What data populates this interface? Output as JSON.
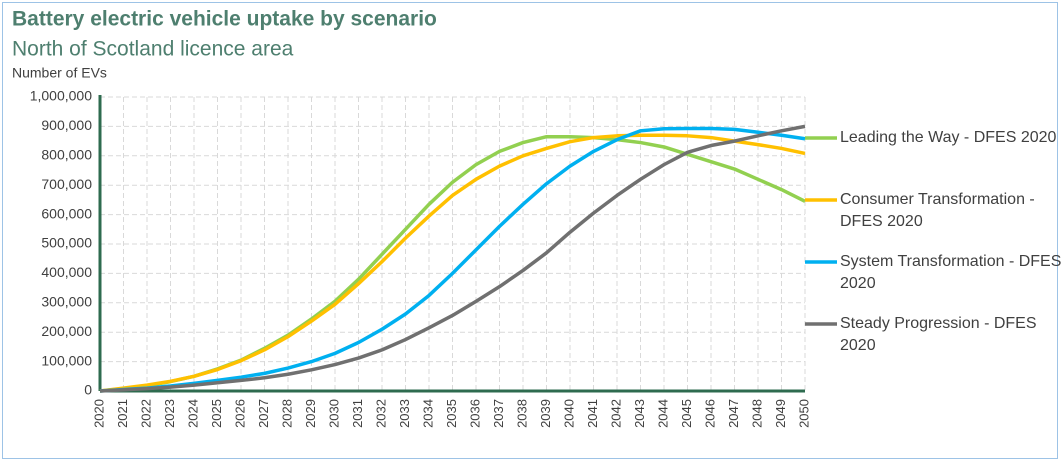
{
  "chart_data": {
    "type": "line",
    "title": "Battery electric vehicle uptake by scenario",
    "subtitle": "North of Scotland licence area",
    "y_label": "Number of EVs",
    "categories": [
      "2020",
      "2021",
      "2022",
      "2023",
      "2024",
      "2025",
      "2026",
      "2027",
      "2028",
      "2029",
      "2030",
      "2031",
      "2032",
      "2033",
      "2034",
      "2035",
      "2036",
      "2037",
      "2038",
      "2039",
      "2040",
      "2041",
      "2042",
      "2043",
      "2044",
      "2045",
      "2046",
      "2047",
      "2048",
      "2049",
      "2050"
    ],
    "series": [
      {
        "name": "Leading the Way - DFES 2020",
        "color": "#92d050",
        "values": [
          0,
          8000,
          18000,
          32000,
          50000,
          75000,
          105000,
          145000,
          190000,
          245000,
          305000,
          380000,
          465000,
          550000,
          635000,
          710000,
          770000,
          815000,
          845000,
          865000,
          865000,
          862000,
          855000,
          845000,
          830000,
          805000,
          780000,
          755000,
          720000,
          685000,
          645000
        ]
      },
      {
        "name": "Consumer Transformation - DFES 2020",
        "color": "#ffc000",
        "values": [
          0,
          10000,
          20000,
          33000,
          50000,
          73000,
          103000,
          140000,
          185000,
          238000,
          295000,
          365000,
          440000,
          520000,
          595000,
          665000,
          720000,
          765000,
          800000,
          825000,
          848000,
          862000,
          868000,
          870000,
          870000,
          868000,
          862000,
          850000,
          838000,
          825000,
          808000
        ]
      },
      {
        "name": "System Transformation - DFES 2020",
        "color": "#00b0f0",
        "values": [
          0,
          5000,
          10000,
          17000,
          26000,
          36000,
          47000,
          60000,
          78000,
          100000,
          128000,
          165000,
          210000,
          262000,
          325000,
          400000,
          480000,
          560000,
          635000,
          705000,
          765000,
          815000,
          855000,
          885000,
          892000,
          893000,
          893000,
          890000,
          880000,
          870000,
          858000
        ]
      },
      {
        "name": "Steady Progression - DFES 2020",
        "color": "#707070",
        "values": [
          0,
          4000,
          8000,
          13000,
          20000,
          28000,
          36000,
          45000,
          57000,
          72000,
          90000,
          112000,
          140000,
          175000,
          215000,
          257000,
          305000,
          355000,
          410000,
          470000,
          540000,
          605000,
          665000,
          720000,
          770000,
          812000,
          835000,
          850000,
          868000,
          885000,
          900000
        ]
      }
    ],
    "ylim": [
      0,
      1000000
    ],
    "yticks": [
      0,
      {
        "value": 100000,
        "label": "100,000"
      },
      {
        "value": 200000,
        "label": "200,000"
      },
      {
        "value": 300000,
        "label": "300,000"
      },
      {
        "value": 400000,
        "label": "400,000"
      },
      {
        "value": 500000,
        "label": "500,000"
      },
      {
        "value": 600000,
        "label": "600,000"
      },
      {
        "value": 700000,
        "label": "700,000"
      },
      {
        "value": 800000,
        "label": "800,000"
      },
      {
        "value": 900000,
        "label": "900,000"
      },
      {
        "value": 1000000,
        "label": "1,000,000"
      }
    ],
    "grid": true
  }
}
